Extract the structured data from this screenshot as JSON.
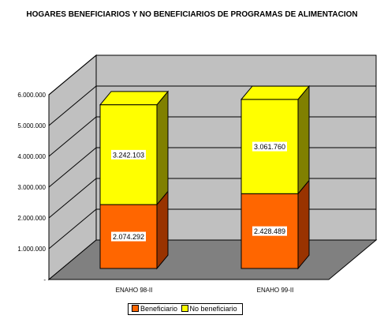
{
  "chart_data": {
    "type": "bar",
    "stacked": true,
    "three_d": true,
    "title": "HOGARES BENEFICIARIOS Y NO BENEFICIARIOS DE PROGRAMAS DE ALIMENTACION",
    "xlabel": "",
    "ylabel": "",
    "categories": [
      "ENAHO 98-II",
      "ENAHO 99-II"
    ],
    "series": [
      {
        "name": "Beneficiario",
        "values": [
          2074292,
          2428489
        ],
        "labels": [
          "2.074.292",
          "2.428.489"
        ],
        "color": "#ff6600",
        "side_color": "#993300"
      },
      {
        "name": "No beneficiario",
        "values": [
          3242103,
          3061760
        ],
        "labels": [
          "3.242.103",
          "3.061.760"
        ],
        "color": "#ffff00",
        "side_color": "#808000"
      }
    ],
    "ylim": [
      0,
      6000000
    ],
    "yticks": [
      0,
      1000000,
      2000000,
      3000000,
      4000000,
      5000000,
      6000000
    ],
    "ytick_labels": [
      "-",
      "1.000.000",
      "2.000.000",
      "3.000.000",
      "4.000.000",
      "5.000.000",
      "6.000.000"
    ],
    "grid": true,
    "legend_position": "bottom",
    "wall_color": "#c0c0c0",
    "floor_color": "#808080"
  }
}
